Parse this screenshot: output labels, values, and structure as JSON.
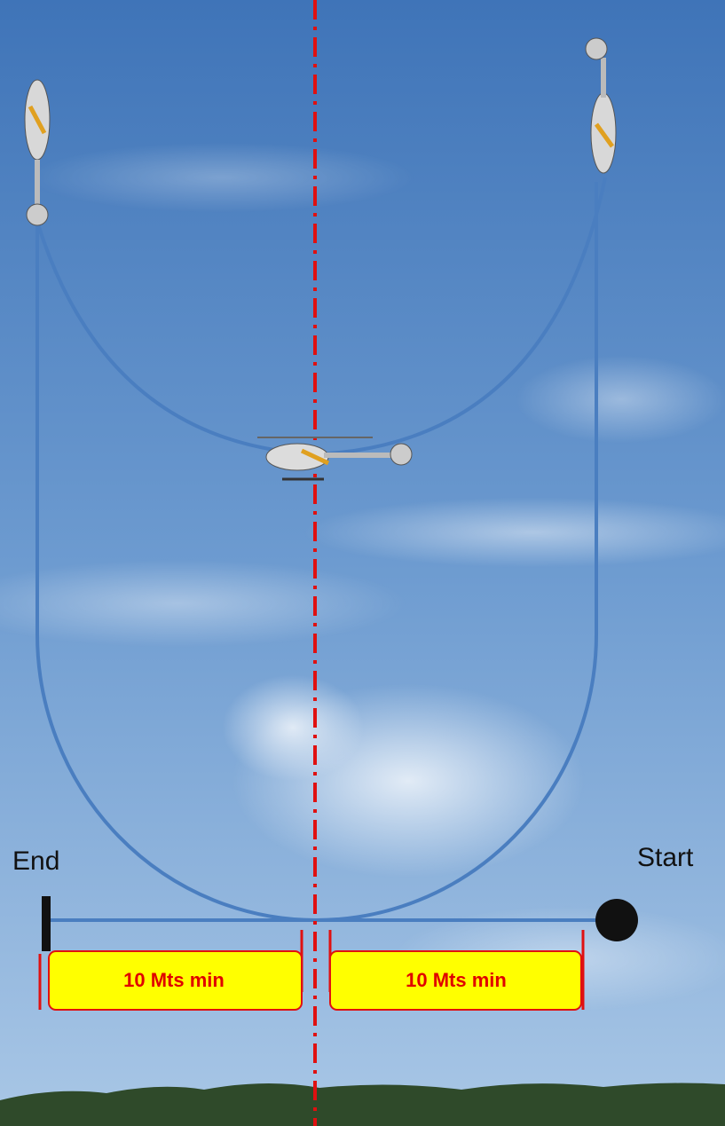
{
  "markers": {
    "end": "End",
    "start": "Start"
  },
  "distances": [
    {
      "label": "10 Mts min"
    },
    {
      "label": "10 Mts min"
    }
  ]
}
